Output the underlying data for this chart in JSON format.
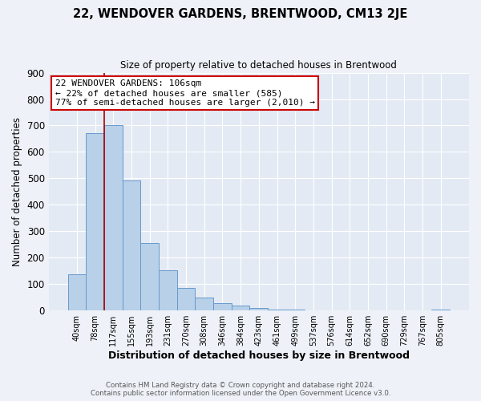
{
  "title": "22, WENDOVER GARDENS, BRENTWOOD, CM13 2JE",
  "subtitle": "Size of property relative to detached houses in Brentwood",
  "xlabel": "Distribution of detached houses by size in Brentwood",
  "ylabel": "Number of detached properties",
  "bar_labels": [
    "40sqm",
    "78sqm",
    "117sqm",
    "155sqm",
    "193sqm",
    "231sqm",
    "270sqm",
    "308sqm",
    "346sqm",
    "384sqm",
    "423sqm",
    "461sqm",
    "499sqm",
    "537sqm",
    "576sqm",
    "614sqm",
    "652sqm",
    "690sqm",
    "729sqm",
    "767sqm",
    "805sqm"
  ],
  "bar_values": [
    137,
    670,
    700,
    493,
    255,
    153,
    85,
    50,
    28,
    20,
    10,
    5,
    3,
    1,
    1,
    0,
    0,
    0,
    0,
    0,
    3
  ],
  "bar_color": "#b8d0e8",
  "bar_edgecolor": "#6699cc",
  "vline_color": "#aa0000",
  "vline_x": 1.5,
  "ylim": [
    0,
    900
  ],
  "yticks": [
    0,
    100,
    200,
    300,
    400,
    500,
    600,
    700,
    800,
    900
  ],
  "annotation_title": "22 WENDOVER GARDENS: 106sqm",
  "annotation_line1": "← 22% of detached houses are smaller (585)",
  "annotation_line2": "77% of semi-detached houses are larger (2,010) →",
  "annotation_box_edgecolor": "#cc0000",
  "footer_line1": "Contains HM Land Registry data © Crown copyright and database right 2024.",
  "footer_line2": "Contains public sector information licensed under the Open Government Licence v3.0.",
  "bg_color": "#eef2f8",
  "plot_bg_color": "#e4eaf4"
}
